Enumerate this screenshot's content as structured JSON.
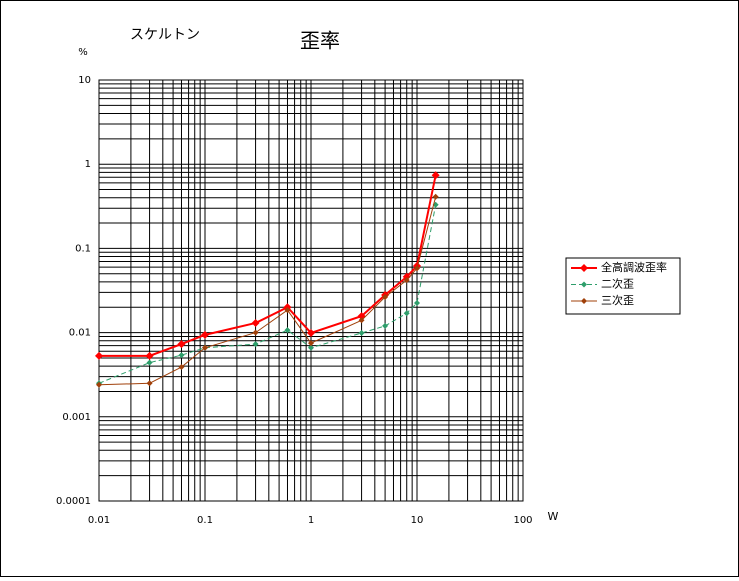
{
  "chart_data": {
    "type": "line",
    "title": "歪率",
    "subtitle": "スケルトン",
    "y_label": "%",
    "x_label": "W",
    "x": [
      0.01,
      0.03,
      0.06,
      0.1,
      0.3,
      0.6,
      1,
      3,
      5,
      8,
      10,
      15
    ],
    "series": [
      {
        "name": "全高調波歪率",
        "color": "#ff0000",
        "values": [
          0.0053,
          0.0053,
          0.0073,
          0.0094,
          0.013,
          0.02,
          0.0099,
          0.0157,
          0.028,
          0.046,
          0.062,
          0.74
        ]
      },
      {
        "name": "二次歪",
        "color": "#2e9e6b",
        "values": [
          0.0025,
          0.0044,
          0.0054,
          0.0066,
          0.0073,
          0.0107,
          0.0066,
          0.0099,
          0.012,
          0.017,
          0.0225,
          0.33
        ]
      },
      {
        "name": "三次歪",
        "color": "#a0400a",
        "values": [
          0.0024,
          0.0025,
          0.0039,
          0.0066,
          0.01,
          0.0185,
          0.0075,
          0.014,
          0.0265,
          0.042,
          0.058,
          0.41
        ]
      }
    ],
    "xlim": [
      0.01,
      100
    ],
    "ylim": [
      0.0001,
      10
    ],
    "xticks": [
      0.01,
      0.1,
      1,
      10,
      100
    ],
    "yticks": [
      0.0001,
      0.001,
      0.01,
      0.1,
      1,
      10
    ],
    "xlog": true,
    "ylog": true,
    "grid": true,
    "minor_grid": true,
    "legend": "right"
  }
}
